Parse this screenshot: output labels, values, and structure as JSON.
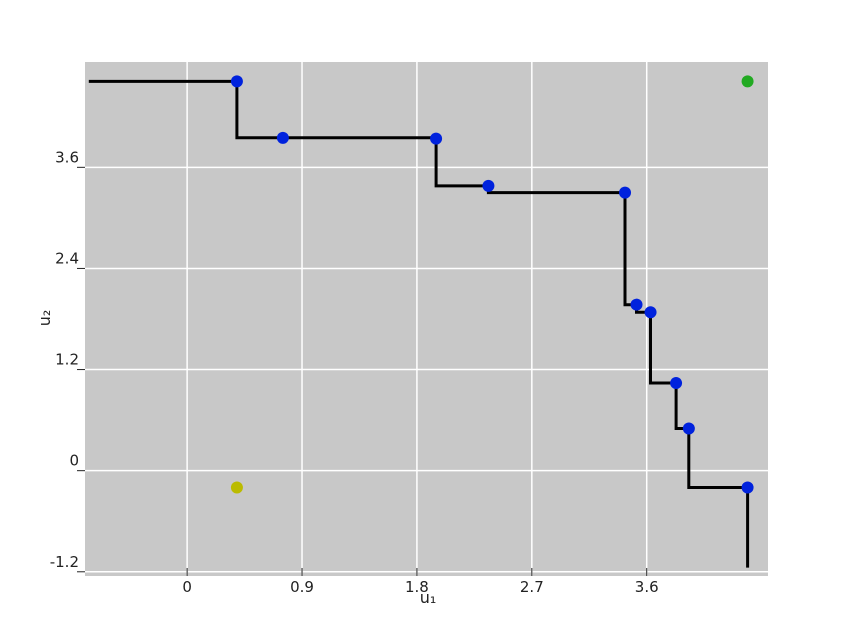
{
  "chart_data": {
    "type": "line",
    "title": "",
    "xlabel": "u₁",
    "ylabel": "u₂",
    "xlim": [
      -0.8,
      4.55
    ],
    "ylim": [
      -1.25,
      4.85
    ],
    "x_ticks": [
      0,
      0.9,
      1.8,
      2.7,
      3.6
    ],
    "x_tick_labels": [
      "0",
      "0.9",
      "1.8",
      "2.7",
      "3.6"
    ],
    "y_ticks": [
      -1.2,
      0,
      1.2,
      2.4,
      3.6
    ],
    "y_tick_labels": [
      "-1.2",
      "0",
      "1.2",
      "2.4",
      "3.6"
    ],
    "grid": true,
    "colors": {
      "background": "#c8c8c8",
      "grid": "#ffffff",
      "step_line": "#000000",
      "points": "#0022dd",
      "ideal_point": "#22aa22",
      "nadir_point": "#bbbb00"
    },
    "series": [
      {
        "kind": "step",
        "x": [
          -0.77,
          0.39,
          0.39,
          0.75,
          0.75,
          1.95,
          1.95,
          2.36,
          2.36,
          3.43,
          3.43,
          3.52,
          3.52,
          3.63,
          3.63,
          3.83,
          3.83,
          3.93,
          3.93,
          4.39,
          4.39
        ],
        "y": [
          4.62,
          4.62,
          3.95,
          3.95,
          3.95,
          3.95,
          3.38,
          3.38,
          3.3,
          3.3,
          1.97,
          1.97,
          1.88,
          1.88,
          1.04,
          1.04,
          0.5,
          0.5,
          -0.2,
          -0.2,
          -1.15
        ]
      },
      {
        "kind": "points",
        "x": [
          0.39,
          0.75,
          1.95,
          2.36,
          3.43,
          3.52,
          3.63,
          3.83,
          3.93,
          4.39
        ],
        "y": [
          4.62,
          3.95,
          3.94,
          3.38,
          3.3,
          1.97,
          1.88,
          1.04,
          0.5,
          -0.2
        ]
      },
      {
        "kind": "ideal",
        "x": [
          4.39
        ],
        "y": [
          4.62
        ]
      },
      {
        "kind": "nadir",
        "x": [
          0.39
        ],
        "y": [
          -0.2
        ]
      }
    ]
  }
}
